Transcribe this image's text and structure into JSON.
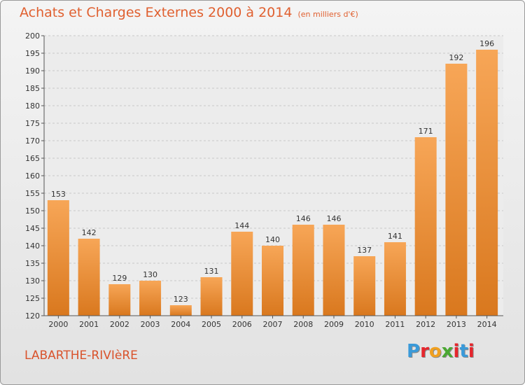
{
  "title": "Achats et Charges Externes 2000 à 2014",
  "subtitle": "(en milliers d'€)",
  "commune": "LABARTHE-RIVIèRE",
  "logo": {
    "letters": [
      "P",
      "r",
      "o",
      "x",
      "i",
      "t",
      "i"
    ],
    "colors": [
      "#3a9ad9",
      "#e6262d",
      "#f0a020",
      "#4aa832",
      "#e6262d",
      "#3a9ad9",
      "#e6262d"
    ]
  },
  "colors": {
    "bar_light": "#f7a657",
    "bar_dark": "#d9781e",
    "text": "#333333",
    "accent": "#e06030"
  },
  "chart_data": {
    "type": "bar",
    "categories": [
      "2000",
      "2001",
      "2002",
      "2003",
      "2004",
      "2005",
      "2006",
      "2007",
      "2008",
      "2009",
      "2010",
      "2011",
      "2012",
      "2013",
      "2014"
    ],
    "values": [
      153,
      142,
      129,
      130,
      123,
      131,
      144,
      140,
      146,
      146,
      137,
      141,
      171,
      192,
      196
    ],
    "data_labels": [
      "153",
      "142",
      "129",
      "130",
      "123",
      "131",
      "144",
      "140",
      "146",
      "146",
      "137",
      "141",
      "171",
      "192",
      "196"
    ],
    "ylim": [
      120,
      200
    ],
    "yticks": [
      "120",
      "125",
      "130",
      "135",
      "140",
      "145",
      "150",
      "155",
      "160",
      "165",
      "170",
      "175",
      "180",
      "185",
      "190",
      "195",
      "200"
    ],
    "grid": true
  }
}
